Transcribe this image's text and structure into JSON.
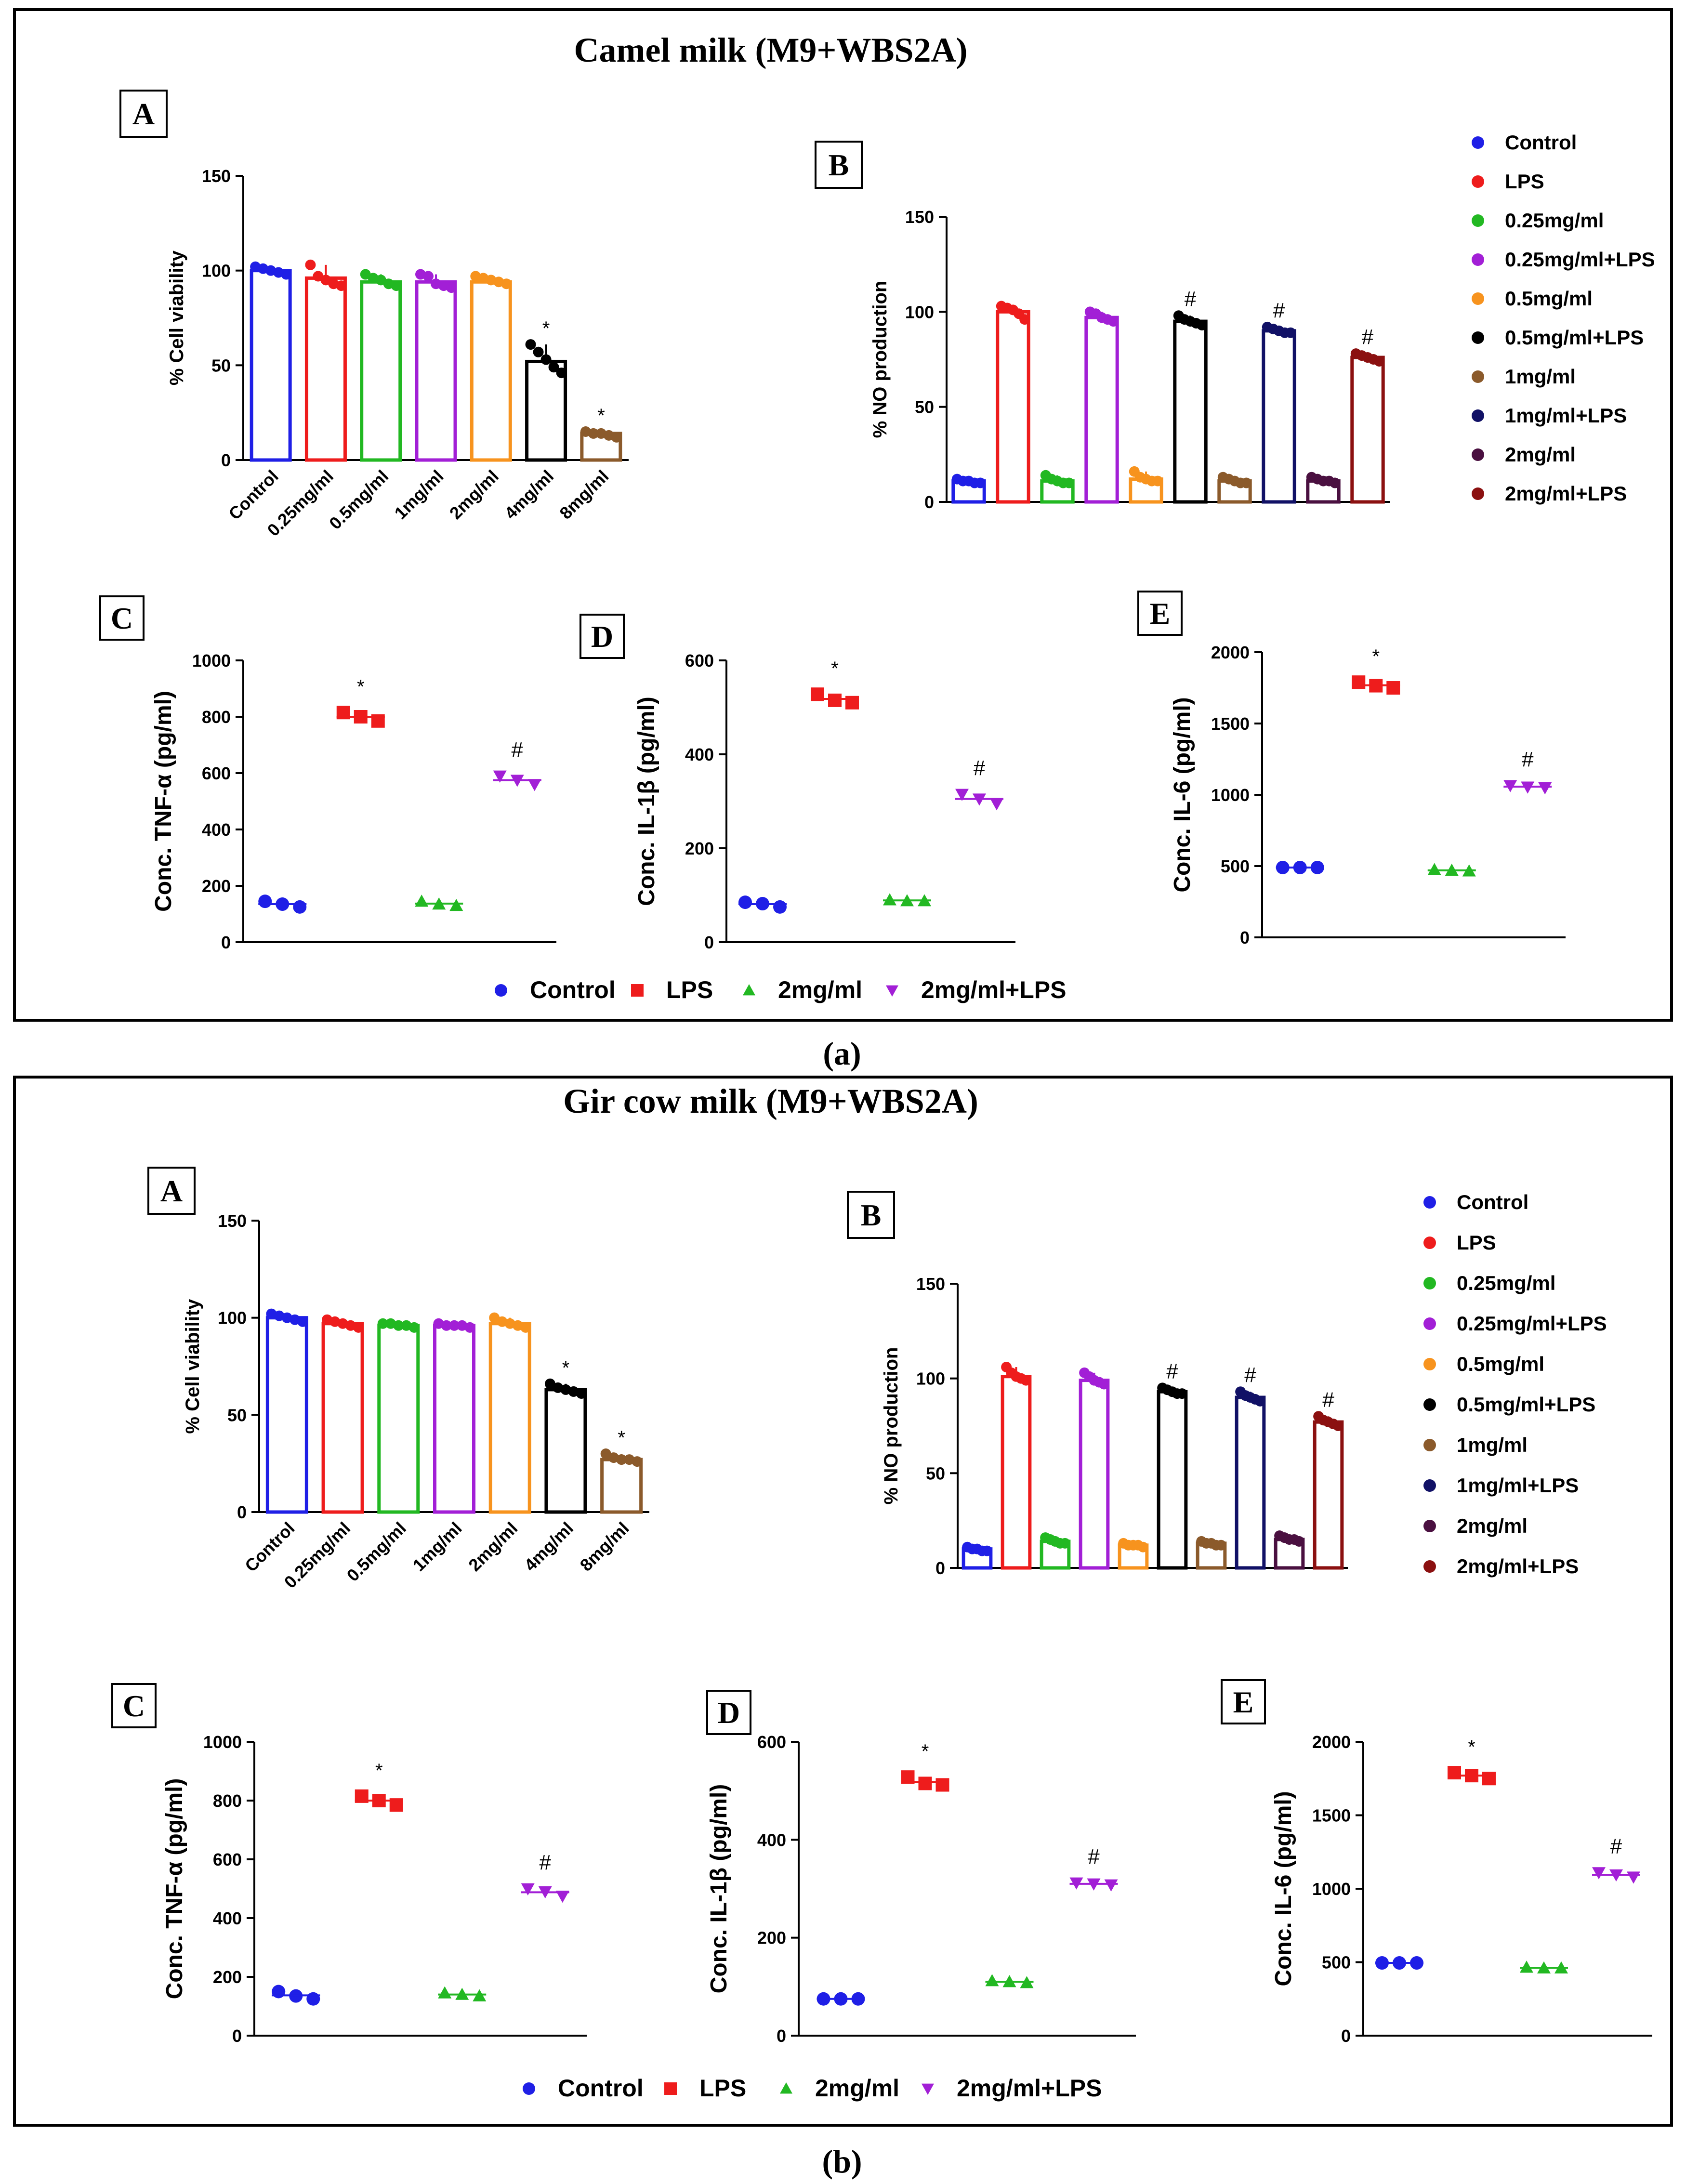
{
  "figure_parts": [
    {
      "title": "Camel milk (M9+WBS2A)",
      "caption": "(a)",
      "chart_data": [
        {
          "letter": "A",
          "type": "bar",
          "ylabel": "% Cell viability",
          "ylim": [
            0,
            150
          ],
          "yticks": [
            "0",
            "50",
            "100",
            "150"
          ],
          "categories": [
            "Control",
            "0.25mg/ml",
            "0.5mg/ml",
            "1mg/ml",
            "2mg/ml",
            "4mg/ml",
            "8mg/ml"
          ],
          "colors": [
            "#1f1fe6",
            "#ee1c1c",
            "#22b822",
            "#a21fd6",
            "#f7931e",
            "#000000",
            "#8b5a2b"
          ],
          "values": [
            100,
            96,
            94,
            94,
            94,
            52,
            14
          ],
          "points": [
            [
              102,
              101,
              100,
              99,
              98
            ],
            [
              103,
              97,
              95,
              93,
              92
            ],
            [
              98,
              96,
              95,
              93,
              92
            ],
            [
              98,
              97,
              93,
              92,
              91
            ],
            [
              97,
              96,
              95,
              94,
              93
            ],
            [
              61,
              57,
              53,
              49,
              46
            ],
            [
              15,
              14,
              14,
              13,
              12
            ]
          ],
          "sig": [
            "",
            "",
            "",
            "",
            "",
            "*",
            "*"
          ]
        },
        {
          "letter": "B",
          "type": "bar",
          "ylabel": "% NO production",
          "ylim": [
            0,
            150
          ],
          "yticks": [
            "0",
            "50",
            "100",
            "150"
          ],
          "categories": [
            "Control",
            "LPS",
            "0.25mg/ml",
            "0.25mg/ml+LPS",
            "0.5mg/ml",
            "0.5mg/ml+LPS",
            "1mg/ml",
            "1mg/ml+LPS",
            "2mg/ml",
            "2mg/ml+LPS"
          ],
          "colors": [
            "#1f1fe6",
            "#ee1c1c",
            "#22b822",
            "#a21fd6",
            "#f7931e",
            "#000000",
            "#8b5a2b",
            "#111166",
            "#4a1040",
            "#8b1010"
          ],
          "values": [
            11,
            100,
            11,
            97,
            12,
            95,
            11,
            90,
            11,
            76
          ],
          "points": [
            [
              12,
              11,
              11,
              10,
              10
            ],
            [
              103,
              102,
              101,
              99,
              96
            ],
            [
              14,
              12,
              11,
              10,
              10
            ],
            [
              100,
              99,
              97,
              96,
              95
            ],
            [
              16,
              13,
              12,
              11,
              11
            ],
            [
              98,
              96,
              95,
              94,
              93
            ],
            [
              13,
              12,
              11,
              10,
              10
            ],
            [
              92,
              91,
              90,
              89,
              89
            ],
            [
              13,
              12,
              11,
              11,
              10
            ],
            [
              78,
              77,
              76,
              75,
              74
            ]
          ],
          "sig": [
            "",
            "",
            "",
            "",
            "",
            "#",
            "",
            "#",
            "",
            "#"
          ]
        },
        {
          "letter": "C",
          "type": "scatter",
          "ylabel": "Conc. TNF-α (pg/ml)",
          "ylim": [
            0,
            1000
          ],
          "yticks": [
            "0",
            "200",
            "400",
            "600",
            "800",
            "1000"
          ],
          "groups": [
            "Control",
            "LPS",
            "2mg/ml",
            "2mg/ml+LPS"
          ],
          "colors": [
            "#1f1fe6",
            "#ee1c1c",
            "#22b822",
            "#a21fd6"
          ],
          "markers": [
            "circle",
            "square",
            "triangle-up",
            "triangle-down"
          ],
          "points": [
            [
              145,
              135,
              125
            ],
            [
              815,
              800,
              785
            ],
            [
              145,
              135,
              130
            ],
            [
              590,
              575,
              560
            ]
          ],
          "means": [
            135,
            800,
            137,
            575
          ],
          "sig": [
            "",
            "*",
            "",
            "#"
          ]
        },
        {
          "letter": "D",
          "type": "scatter",
          "ylabel": "Conc. IL-1β (pg/ml)",
          "ylim": [
            0,
            600
          ],
          "yticks": [
            "0",
            "200",
            "400",
            "600"
          ],
          "groups": [
            "Control",
            "LPS",
            "2mg/ml",
            "2mg/ml+LPS"
          ],
          "colors": [
            "#1f1fe6",
            "#ee1c1c",
            "#22b822",
            "#a21fd6"
          ],
          "markers": [
            "circle",
            "square",
            "triangle-up",
            "triangle-down"
          ],
          "points": [
            [
              85,
              82,
              75
            ],
            [
              528,
              515,
              510
            ],
            [
              90,
              88,
              88
            ],
            [
              315,
              305,
              295
            ]
          ],
          "means": [
            81,
            518,
            89,
            305
          ],
          "sig": [
            "",
            "*",
            "",
            "#"
          ]
        },
        {
          "letter": "E",
          "type": "scatter",
          "ylabel": "Conc. IL-6 (pg/ml)",
          "ylim": [
            0,
            2000
          ],
          "yticks": [
            "0",
            "500",
            "1000",
            "1500",
            "2000"
          ],
          "groups": [
            "Control",
            "LPS",
            "2mg/ml",
            "2mg/ml+LPS"
          ],
          "colors": [
            "#1f1fe6",
            "#ee1c1c",
            "#22b822",
            "#a21fd6"
          ],
          "markers": [
            "circle",
            "square",
            "triangle-up",
            "triangle-down"
          ],
          "points": [
            [
              490,
              490,
              490
            ],
            [
              1790,
              1765,
              1750
            ],
            [
              475,
              470,
              465
            ],
            [
              1065,
              1055,
              1050
            ]
          ],
          "means": [
            490,
            1768,
            470,
            1057
          ],
          "sig": [
            "",
            "*",
            "",
            "#"
          ]
        }
      ],
      "legend_B": [
        "Control",
        "LPS",
        "0.25mg/ml",
        "0.25mg/ml+LPS",
        "0.5mg/ml",
        "0.5mg/ml+LPS",
        "1mg/ml",
        "1mg/ml+LPS",
        "2mg/ml",
        "2mg/ml+LPS"
      ],
      "legend_bottom": [
        "Control",
        "LPS",
        "2mg/ml",
        "2mg/ml+LPS"
      ]
    },
    {
      "title": "Gir cow milk (M9+WBS2A)",
      "caption": "(b)",
      "chart_data": [
        {
          "letter": "A",
          "type": "bar",
          "ylabel": "% Cell viability",
          "ylim": [
            0,
            150
          ],
          "yticks": [
            "0",
            "50",
            "100",
            "150"
          ],
          "categories": [
            "Control",
            "0.25mg/ml",
            "0.5mg/ml",
            "1mg/ml",
            "2mg/ml",
            "4mg/ml",
            "8mg/ml"
          ],
          "colors": [
            "#1f1fe6",
            "#ee1c1c",
            "#22b822",
            "#a21fd6",
            "#f7931e",
            "#000000",
            "#8b5a2b"
          ],
          "values": [
            100,
            97,
            96,
            96,
            97,
            63,
            27
          ],
          "points": [
            [
              102,
              101,
              100,
              99,
              98
            ],
            [
              99,
              98,
              97,
              96,
              95
            ],
            [
              97,
              97,
              96,
              96,
              95
            ],
            [
              97,
              96,
              96,
              96,
              95
            ],
            [
              100,
              98,
              97,
              96,
              95
            ],
            [
              66,
              64,
              63,
              62,
              61
            ],
            [
              30,
              28,
              27,
              27,
              26
            ]
          ],
          "sig": [
            "",
            "",
            "",
            "",
            "",
            "*",
            "*"
          ]
        },
        {
          "letter": "B",
          "type": "bar",
          "ylabel": "% NO production",
          "ylim": [
            0,
            150
          ],
          "yticks": [
            "0",
            "50",
            "100",
            "150"
          ],
          "categories": [
            "Control",
            "LPS",
            "0.25mg/ml",
            "0.25mg/ml+LPS",
            "0.5mg/ml",
            "0.5mg/ml+LPS",
            "1mg/ml",
            "1mg/ml+LPS",
            "2mg/ml",
            "2mg/ml+LPS"
          ],
          "colors": [
            "#1f1fe6",
            "#ee1c1c",
            "#22b822",
            "#a21fd6",
            "#f7931e",
            "#000000",
            "#8b5a2b",
            "#111166",
            "#4a1040",
            "#8b1010"
          ],
          "values": [
            10,
            101,
            14,
            99,
            12,
            93,
            13,
            90,
            15,
            77
          ],
          "points": [
            [
              11,
              10,
              10,
              9,
              9
            ],
            [
              106,
              103,
              101,
              100,
              99
            ],
            [
              16,
              15,
              14,
              13,
              13
            ],
            [
              103,
              101,
              99,
              98,
              97
            ],
            [
              13,
              12,
              12,
              12,
              11
            ],
            [
              95,
              94,
              93,
              92,
              92
            ],
            [
              14,
              13,
              13,
              12,
              12
            ],
            [
              93,
              91,
              90,
              89,
              88
            ],
            [
              17,
              16,
              15,
              15,
              14
            ],
            [
              80,
              78,
              77,
              76,
              75
            ]
          ],
          "sig": [
            "",
            "",
            "",
            "",
            "",
            "#",
            "",
            "#",
            "",
            "#"
          ]
        },
        {
          "letter": "C",
          "type": "scatter",
          "ylabel": "Conc. TNF-α (pg/ml)",
          "ylim": [
            0,
            1000
          ],
          "yticks": [
            "0",
            "200",
            "400",
            "600",
            "800",
            "1000"
          ],
          "groups": [
            "Control",
            "LPS",
            "2mg/ml",
            "2mg/ml+LPS"
          ],
          "colors": [
            "#1f1fe6",
            "#ee1c1c",
            "#22b822",
            "#a21fd6"
          ],
          "markers": [
            "circle",
            "square",
            "triangle-up",
            "triangle-down"
          ],
          "points": [
            [
              150,
              135,
              125
            ],
            [
              815,
              800,
              785
            ],
            [
              145,
              140,
              135
            ],
            [
              500,
              490,
              475
            ]
          ],
          "means": [
            137,
            800,
            140,
            488
          ],
          "sig": [
            "",
            "*",
            "",
            "#"
          ]
        },
        {
          "letter": "D",
          "type": "scatter",
          "ylabel": "Conc. IL-1β (pg/ml)",
          "ylim": [
            0,
            600
          ],
          "yticks": [
            "0",
            "200",
            "400",
            "600"
          ],
          "groups": [
            "Control",
            "LPS",
            "2mg/ml",
            "2mg/ml+LPS"
          ],
          "colors": [
            "#1f1fe6",
            "#ee1c1c",
            "#22b822",
            "#a21fd6"
          ],
          "markers": [
            "circle",
            "square",
            "triangle-up",
            "triangle-down"
          ],
          "points": [
            [
              75,
              75,
              75
            ],
            [
              528,
              515,
              512
            ],
            [
              112,
              110,
              108
            ],
            [
              312,
              310,
              308
            ]
          ],
          "means": [
            75,
            518,
            110,
            310
          ],
          "sig": [
            "",
            "*",
            "",
            "#"
          ]
        },
        {
          "letter": "E",
          "type": "scatter",
          "ylabel": "Conc. IL-6 (pg/ml)",
          "ylim": [
            0,
            2000
          ],
          "yticks": [
            "0",
            "500",
            "1000",
            "1500",
            "2000"
          ],
          "groups": [
            "Control",
            "LPS",
            "2mg/ml",
            "2mg/ml+LPS"
          ],
          "colors": [
            "#1f1fe6",
            "#ee1c1c",
            "#22b822",
            "#a21fd6"
          ],
          "markers": [
            "circle",
            "square",
            "triangle-up",
            "triangle-down"
          ],
          "points": [
            [
              495,
              495,
              495
            ],
            [
              1790,
              1770,
              1750
            ],
            [
              465,
              460,
              460
            ],
            [
              1110,
              1095,
              1080
            ]
          ],
          "means": [
            495,
            1770,
            462,
            1095
          ],
          "sig": [
            "",
            "*",
            "",
            "#"
          ]
        }
      ],
      "legend_B": [
        "Control",
        "LPS",
        "0.25mg/ml",
        "0.25mg/ml+LPS",
        "0.5mg/ml",
        "0.5mg/ml+LPS",
        "1mg/ml",
        "1mg/ml+LPS",
        "2mg/ml",
        "2mg/ml+LPS"
      ],
      "legend_bottom": [
        "Control",
        "LPS",
        "2mg/ml",
        "2mg/ml+LPS"
      ]
    }
  ]
}
